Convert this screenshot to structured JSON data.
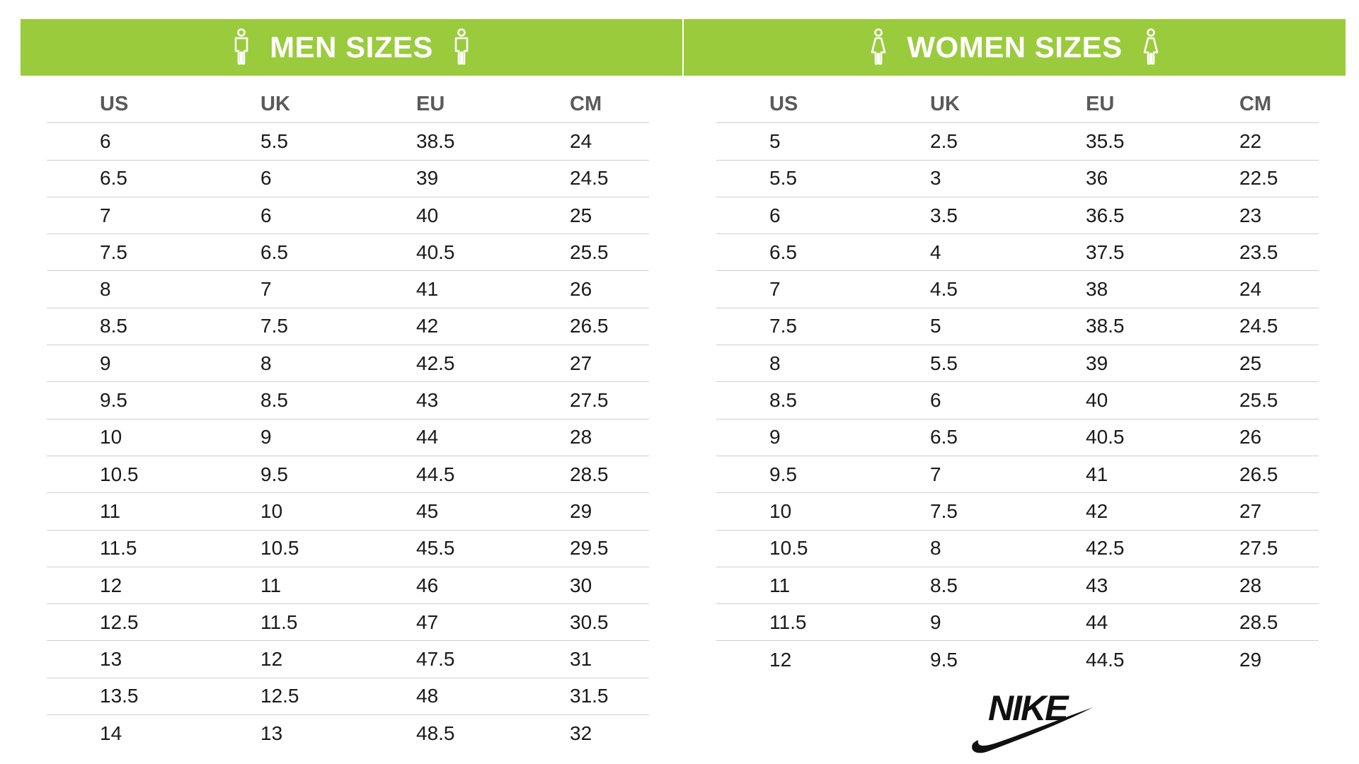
{
  "men": {
    "title": "MEN SIZES",
    "headers": [
      "US",
      "UK",
      "EU",
      "CM"
    ],
    "rows": [
      [
        "6",
        "5.5",
        "38.5",
        "24"
      ],
      [
        "6.5",
        "6",
        "39",
        "24.5"
      ],
      [
        "7",
        "6",
        "40",
        "25"
      ],
      [
        "7.5",
        "6.5",
        "40.5",
        "25.5"
      ],
      [
        "8",
        "7",
        "41",
        "26"
      ],
      [
        "8.5",
        "7.5",
        "42",
        "26.5"
      ],
      [
        "9",
        "8",
        "42.5",
        "27"
      ],
      [
        "9.5",
        "8.5",
        "43",
        "27.5"
      ],
      [
        "10",
        "9",
        "44",
        "28"
      ],
      [
        "10.5",
        "9.5",
        "44.5",
        "28.5"
      ],
      [
        "11",
        "10",
        "45",
        "29"
      ],
      [
        "11.5",
        "10.5",
        "45.5",
        "29.5"
      ],
      [
        "12",
        "11",
        "46",
        "30"
      ],
      [
        "12.5",
        "11.5",
        "47",
        "30.5"
      ],
      [
        "13",
        "12",
        "47.5",
        "31"
      ],
      [
        "13.5",
        "12.5",
        "48",
        "31.5"
      ],
      [
        "14",
        "13",
        "48.5",
        "32"
      ]
    ]
  },
  "women": {
    "title": "WOMEN SIZES",
    "headers": [
      "US",
      "UK",
      "EU",
      "CM"
    ],
    "rows": [
      [
        "5",
        "2.5",
        "35.5",
        "22"
      ],
      [
        "5.5",
        "3",
        "36",
        "22.5"
      ],
      [
        "6",
        "3.5",
        "36.5",
        "23"
      ],
      [
        "6.5",
        "4",
        "37.5",
        "23.5"
      ],
      [
        "7",
        "4.5",
        "38",
        "24"
      ],
      [
        "7.5",
        "5",
        "38.5",
        "24.5"
      ],
      [
        "8",
        "5.5",
        "39",
        "25"
      ],
      [
        "8.5",
        "6",
        "40",
        "25.5"
      ],
      [
        "9",
        "6.5",
        "40.5",
        "26"
      ],
      [
        "9.5",
        "7",
        "41",
        "26.5"
      ],
      [
        "10",
        "7.5",
        "42",
        "27"
      ],
      [
        "10.5",
        "8",
        "42.5",
        "27.5"
      ],
      [
        "11",
        "8.5",
        "43",
        "28"
      ],
      [
        "11.5",
        "9",
        "44",
        "28.5"
      ],
      [
        "12",
        "9.5",
        "44.5",
        "29"
      ]
    ]
  },
  "icons": {
    "men": "man-figure-icon",
    "women": "woman-figure-icon",
    "brand": "nike-logo"
  },
  "brand_logo_text": "NIKE",
  "colors": {
    "banner": "#9acb3c",
    "banner_text": "#ffffff",
    "header_text": "#5a5a5a",
    "divider": "#cfcfcf"
  }
}
